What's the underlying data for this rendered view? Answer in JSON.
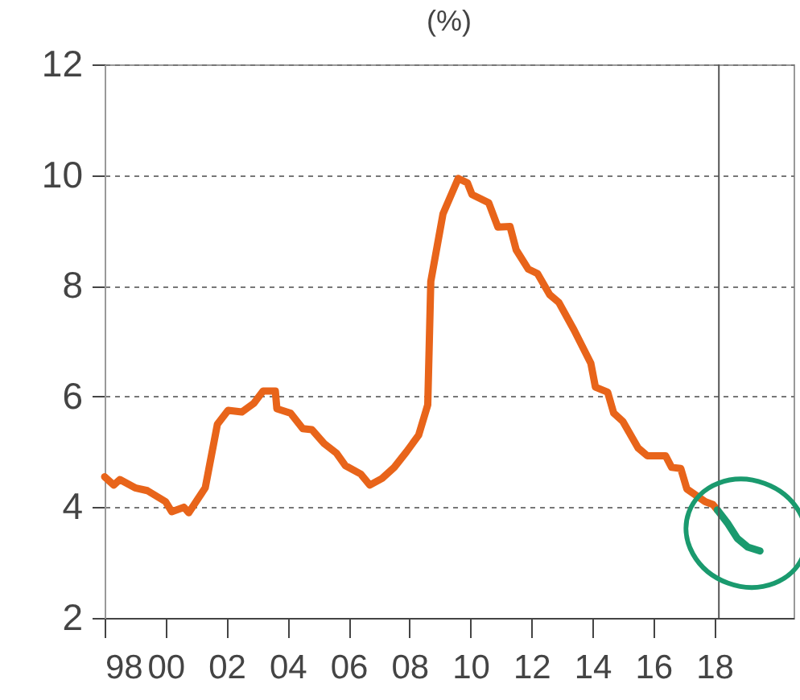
{
  "chart_data": {
    "type": "line",
    "title": "(%)",
    "xlim": [
      1998,
      2020.6
    ],
    "xticks": [
      {
        "value": 1998,
        "label": "98"
      },
      {
        "value": 2000,
        "label": "00"
      },
      {
        "value": 2002,
        "label": "02"
      },
      {
        "value": 2004,
        "label": "04"
      },
      {
        "value": 2006,
        "label": "06"
      },
      {
        "value": 2008,
        "label": "08"
      },
      {
        "value": 2010,
        "label": "10"
      },
      {
        "value": 2012,
        "label": "12"
      },
      {
        "value": 2014,
        "label": "14"
      },
      {
        "value": 2016,
        "label": "16"
      },
      {
        "value": 2018,
        "label": "18"
      }
    ],
    "ylim": [
      2,
      12
    ],
    "yticks": [
      2,
      4,
      6,
      8,
      10,
      12
    ],
    "grid": "y",
    "line_style": "solid",
    "series": [
      {
        "color": "#e8641a",
        "x": [
          1998.0,
          1998.3,
          1998.5,
          1999.0,
          1999.4,
          2000.0,
          2000.2,
          2000.6,
          2000.76,
          2001.3,
          2001.7,
          2002.05,
          2002.5,
          2002.9,
          2003.2,
          2003.6,
          2003.65,
          2004.1,
          2004.5,
          2004.8,
          2005.2,
          2005.6,
          2005.9,
          2006.4,
          2006.7,
          2007.1,
          2007.5,
          2007.9,
          2008.3,
          2008.6,
          2008.7,
          2009.1,
          2009.6,
          2009.9,
          2010.05,
          2010.6,
          2010.9,
          2011.3,
          2011.5,
          2011.9,
          2012.2,
          2012.6,
          2012.9,
          2013.4,
          2013.95,
          2014.1,
          2014.5,
          2014.7,
          2015.0,
          2015.5,
          2015.8,
          2016.4,
          2016.6,
          2016.9,
          2017.1,
          2017.7,
          2017.95,
          2018.1
        ],
        "values": [
          4.55,
          4.4,
          4.5,
          4.35,
          4.3,
          4.1,
          3.92,
          4.0,
          3.9,
          4.35,
          5.5,
          5.75,
          5.72,
          5.88,
          6.1,
          6.1,
          5.78,
          5.7,
          5.42,
          5.4,
          5.15,
          4.98,
          4.75,
          4.6,
          4.4,
          4.52,
          4.72,
          5.0,
          5.3,
          5.85,
          8.08,
          9.3,
          9.94,
          9.86,
          9.65,
          9.5,
          9.06,
          9.07,
          8.65,
          8.3,
          8.22,
          7.84,
          7.7,
          7.2,
          6.6,
          6.17,
          6.08,
          5.7,
          5.55,
          5.07,
          4.93,
          4.93,
          4.72,
          4.7,
          4.33,
          4.1,
          4.05,
          3.95
        ]
      },
      {
        "color": "#1a9a6e",
        "x": [
          2018.1,
          2018.45,
          2018.75,
          2019.1,
          2019.5
        ],
        "values": [
          3.95,
          3.7,
          3.44,
          3.28,
          3.21
        ]
      }
    ],
    "ref_lines": [
      {
        "axis": "x",
        "value": 2018.15,
        "color": "#555555"
      }
    ]
  }
}
